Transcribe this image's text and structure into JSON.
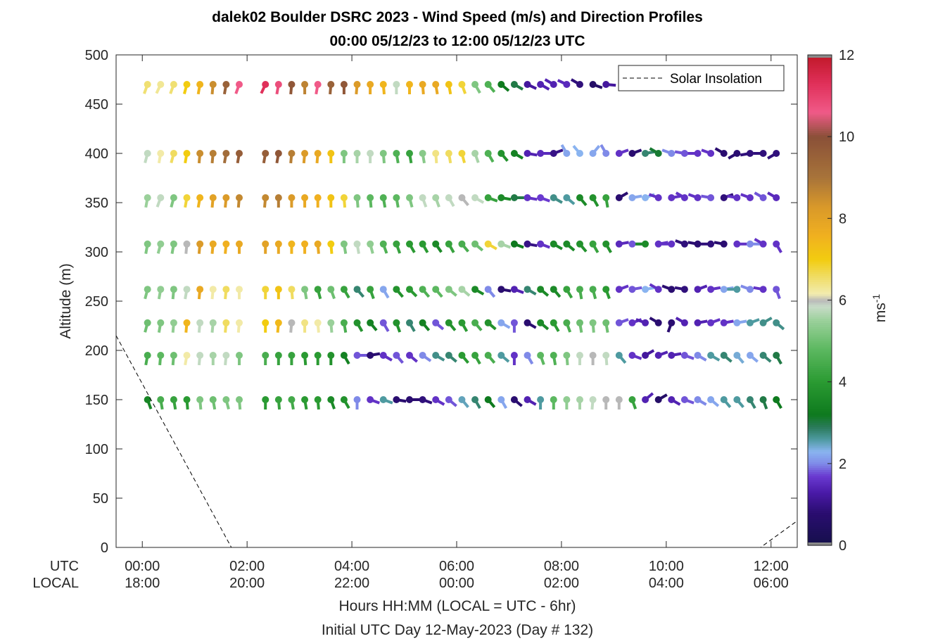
{
  "chart_data": {
    "type": "scatter",
    "title": "dalek02 Boulder DSRC 2023 - Wind Speed (m/s) and Direction Profiles",
    "subtitle": "00:00 05/12/23 to 12:00 05/12/23  UTC",
    "ylabel": "Altitude (m)",
    "xlabel": "Hours HH:MM  (LOCAL = UTC - 6hr)",
    "xlabel2": "Initial UTC Day 12-May-2023 (Day # 132)",
    "ylim": [
      0,
      500
    ],
    "xlim_hours": [
      -0.5,
      12.5
    ],
    "grid": false,
    "legend_position": "top-right",
    "y_ticks": [
      "0",
      "50",
      "100",
      "150",
      "200",
      "250",
      "300",
      "350",
      "400",
      "450",
      "500"
    ],
    "x_row_labels": [
      "UTC",
      "LOCAL"
    ],
    "x_ticks": [
      {
        "hour": 0,
        "utc": "00:00",
        "local": "18:00"
      },
      {
        "hour": 2,
        "utc": "02:00",
        "local": "20:00"
      },
      {
        "hour": 4,
        "utc": "04:00",
        "local": "22:00"
      },
      {
        "hour": 6,
        "utc": "06:00",
        "local": "00:00"
      },
      {
        "hour": 8,
        "utc": "08:00",
        "local": "02:00"
      },
      {
        "hour": 10,
        "utc": "10:00",
        "local": "04:00"
      },
      {
        "hour": 12,
        "utc": "12:00",
        "local": "06:00"
      }
    ],
    "legend": [
      "Solar Insolation"
    ],
    "colorbar": {
      "label": "ms",
      "label_exp": "-1",
      "range": [
        0,
        12
      ],
      "ticks": [
        "0",
        "2",
        "4",
        "6",
        "8",
        "10",
        "12"
      ]
    },
    "solar_insolation": [
      [
        -0.5,
        215
      ],
      [
        1.7,
        0
      ],
      [
        11.8,
        0
      ],
      [
        12.5,
        27
      ]
    ],
    "altitudes": [
      470,
      400,
      355,
      308,
      262,
      228,
      195,
      150
    ],
    "times_hours": [
      0.1,
      0.35,
      0.6,
      0.85,
      1.1,
      1.35,
      1.6,
      1.85,
      2.35,
      2.6,
      2.85,
      3.1,
      3.35,
      3.6,
      3.85,
      4.1,
      4.35,
      4.6,
      4.85,
      5.1,
      5.35,
      5.6,
      5.85,
      6.1,
      6.35,
      6.6,
      6.85,
      7.1,
      7.35,
      7.6,
      7.85,
      8.1,
      8.35,
      8.6,
      8.85,
      9.1,
      9.35,
      9.6,
      9.85,
      10.1,
      10.35,
      10.6,
      10.85,
      11.1,
      11.35,
      11.6,
      11.85,
      12.1
    ],
    "profiles": [
      {
        "altitude": 470,
        "speed": [
          6.5,
          6.3,
          6.5,
          7,
          7.5,
          8.5,
          9.5,
          10.6,
          11.3,
          10.8,
          9.8,
          8.7,
          10.6,
          9.5,
          9.8,
          8.2,
          7.8,
          7.5,
          5.8,
          7.5,
          7.8,
          7.8,
          7.2,
          6.8,
          5.2,
          4.6,
          3.2,
          3.0,
          1.2,
          1.4,
          1.4,
          1.5,
          0.9,
          0.6,
          1.2,
          null,
          null,
          null,
          null,
          null,
          null,
          null,
          null,
          null,
          null,
          null,
          null,
          null
        ],
        "direction": [
          200,
          205,
          200,
          195,
          190,
          185,
          190,
          200,
          205,
          190,
          185,
          180,
          190,
          185,
          180,
          185,
          180,
          175,
          180,
          180,
          175,
          170,
          170,
          160,
          150,
          140,
          130,
          120,
          115,
          120,
          300,
          295,
          300,
          110,
          95,
          250,
          null,
          null,
          null,
          null,
          null,
          null,
          null,
          null,
          null,
          null,
          null,
          null
        ]
      },
      {
        "altitude": 400,
        "speed": [
          5.8,
          6.2,
          6.6,
          7.0,
          8.5,
          8.8,
          9.2,
          9.6,
          9.6,
          9.8,
          8.8,
          8.2,
          7.8,
          7.2,
          5.2,
          5.6,
          5.8,
          5.2,
          4.6,
          4.2,
          5.3,
          6.4,
          6.6,
          6.8,
          5.6,
          4.6,
          3.8,
          3.4,
          1.4,
          1.5,
          1.0,
          2.2,
          2.3,
          2.2,
          2.0,
          1.6,
          0.8,
          2.8,
          3.1,
          2.0,
          1.8,
          1.6,
          1.6,
          0.8,
          0.8,
          0.9,
          0.9,
          0.9
        ],
        "direction": [
          195,
          190,
          195,
          190,
          185,
          185,
          190,
          190,
          190,
          190,
          185,
          185,
          185,
          180,
          180,
          180,
          180,
          175,
          170,
          170,
          170,
          175,
          170,
          165,
          160,
          150,
          140,
          120,
          100,
          90,
          70,
          330,
          320,
          40,
          330,
          70,
          70,
          80,
          300,
          290,
          280,
          270,
          290,
          300,
          240,
          260,
          270,
          240
        ]
      },
      {
        "altitude": 355,
        "speed": [
          5.5,
          5.8,
          5.2,
          6.8,
          7.5,
          8.0,
          8.2,
          8.6,
          8.6,
          8.8,
          8.2,
          7.8,
          7.6,
          7.2,
          6.8,
          5.2,
          4.8,
          4.6,
          4.8,
          5.2,
          5.8,
          5.6,
          5.8,
          6.0,
          5.8,
          4.2,
          3.6,
          3.0,
          1.6,
          1.7,
          2.7,
          2.6,
          3.6,
          3.8,
          4.2,
          0.8,
          2.2,
          2.3,
          1.6,
          1.6,
          1.6,
          1.6,
          1.8,
          0.9,
          1.6,
          1.6,
          1.8,
          1.5
        ],
        "direction": [
          190,
          200,
          195,
          190,
          190,
          185,
          185,
          185,
          185,
          180,
          180,
          180,
          180,
          180,
          175,
          175,
          175,
          170,
          170,
          165,
          160,
          160,
          150,
          140,
          120,
          110,
          100,
          90,
          100,
          110,
          120,
          130,
          140,
          150,
          170,
          60,
          80,
          70,
          290,
          80,
          300,
          290,
          280,
          70,
          280,
          290,
          300,
          300
        ]
      },
      {
        "altitude": 308,
        "speed": [
          5.2,
          5.4,
          5.2,
          6.0,
          8.2,
          7.8,
          7.6,
          7.8,
          8.0,
          7.8,
          7.5,
          7.6,
          7.8,
          7.0,
          5.2,
          5.8,
          5.4,
          4.6,
          4.2,
          4.0,
          4.0,
          3.6,
          4.2,
          4.5,
          5.0,
          6.8,
          5.6,
          3.2,
          1.0,
          1.6,
          3.6,
          3.6,
          3.8,
          4.2,
          3.8,
          1.5,
          1.8,
          3.6,
          1.6,
          1.6,
          0.9,
          0.8,
          0.9,
          0.8,
          1.6,
          2.0,
          1.6,
          1.6
        ],
        "direction": [
          190,
          195,
          190,
          185,
          185,
          185,
          185,
          180,
          180,
          180,
          180,
          180,
          175,
          175,
          170,
          170,
          165,
          160,
          160,
          150,
          150,
          145,
          150,
          140,
          130,
          120,
          110,
          110,
          100,
          110,
          120,
          130,
          140,
          150,
          150,
          80,
          90,
          270,
          80,
          270,
          290,
          280,
          270,
          280,
          90,
          90,
          300,
          150
        ]
      },
      {
        "altitude": 262,
        "speed": [
          5.2,
          5.4,
          5.2,
          5.8,
          7.8,
          6.2,
          6.6,
          6.2,
          6.8,
          7.2,
          6.6,
          5.2,
          4.2,
          5.0,
          4.2,
          2.8,
          4.2,
          2.2,
          3.8,
          4.0,
          4.6,
          4.8,
          5.2,
          5.6,
          3.6,
          2.0,
          0.8,
          1.4,
          2.8,
          3.6,
          3.6,
          4.2,
          4.5,
          4.5,
          4.0,
          1.6,
          1.8,
          2.3,
          1.6,
          0.8,
          0.9,
          1.4,
          1.6,
          2.2,
          2.6,
          2.0,
          1.6,
          1.8
        ],
        "direction": [
          195,
          190,
          185,
          190,
          185,
          185,
          185,
          180,
          180,
          180,
          175,
          170,
          165,
          160,
          150,
          140,
          160,
          150,
          140,
          135,
          140,
          140,
          130,
          130,
          120,
          140,
          100,
          110,
          120,
          130,
          140,
          150,
          170,
          165,
          160,
          70,
          80,
          80,
          300,
          290,
          280,
          70,
          80,
          80,
          270,
          290,
          280,
          160
        ]
      },
      {
        "altitude": 228,
        "speed": [
          5.0,
          5.2,
          5.4,
          7.5,
          5.8,
          5.6,
          6.6,
          6.2,
          7.0,
          7.4,
          6.0,
          6.4,
          6.2,
          5.5,
          4.5,
          3.8,
          3.4,
          1.8,
          3.8,
          2.8,
          3.4,
          1.8,
          3.8,
          4.0,
          4.5,
          3.8,
          2.2,
          1.8,
          0.8,
          3.6,
          4.0,
          4.5,
          5.0,
          5.2,
          5.0,
          1.8,
          1.6,
          1.4,
          0.8,
          0.8,
          1.4,
          1.4,
          1.6,
          1.6,
          2.2,
          2.6,
          2.7,
          2.7
        ],
        "direction": [
          195,
          190,
          185,
          185,
          185,
          185,
          185,
          185,
          180,
          185,
          185,
          180,
          175,
          175,
          170,
          150,
          140,
          150,
          160,
          150,
          140,
          130,
          140,
          150,
          140,
          130,
          120,
          180,
          120,
          130,
          150,
          160,
          170,
          175,
          170,
          70,
          70,
          290,
          300,
          200,
          300,
          80,
          70,
          80,
          80,
          70,
          60,
          130
        ]
      },
      {
        "altitude": 195,
        "speed": [
          4.5,
          4.8,
          5.0,
          6.2,
          5.8,
          5.6,
          5.8,
          5.2,
          4.5,
          4.2,
          4.2,
          4.0,
          4.0,
          3.8,
          3.4,
          1.8,
          0.8,
          1.6,
          1.8,
          1.6,
          2.0,
          2.7,
          2.8,
          4.0,
          4.2,
          4.5,
          2.6,
          1.6,
          2.0,
          4.8,
          4.6,
          5.2,
          5.8,
          6.0,
          5.8,
          2.6,
          1.6,
          1.2,
          1.4,
          1.4,
          1.8,
          2.0,
          2.6,
          2.8,
          2.4,
          2.2,
          2.8,
          3.0
        ],
        "direction": [
          190,
          185,
          185,
          190,
          185,
          180,
          185,
          180,
          180,
          180,
          180,
          175,
          180,
          180,
          150,
          90,
          80,
          120,
          140,
          130,
          125,
          120,
          130,
          140,
          150,
          140,
          130,
          180,
          150,
          160,
          170,
          175,
          180,
          180,
          175,
          140,
          110,
          60,
          70,
          80,
          110,
          120,
          120,
          130,
          140,
          130,
          130,
          150
        ]
      },
      {
        "altitude": 150,
        "speed": [
          3.5,
          4.5,
          4.2,
          4.0,
          5.2,
          5.0,
          5.2,
          5.2,
          4.0,
          4.2,
          4.4,
          4.0,
          4.0,
          3.6,
          3.8,
          2.0,
          1.6,
          2.6,
          0.8,
          0.8,
          0.9,
          1.6,
          1.8,
          2.5,
          2.8,
          3.2,
          2.2,
          0.8,
          1.4,
          2.6,
          4.8,
          5.4,
          5.6,
          5.8,
          6.0,
          6.0,
          4.2,
          1.4,
          0.6,
          1.4,
          1.8,
          2.0,
          2.2,
          2.6,
          2.6,
          2.8,
          3.0,
          3.2
        ],
        "direction": [
          160,
          170,
          170,
          175,
          175,
          170,
          165,
          175,
          180,
          175,
          170,
          170,
          175,
          160,
          150,
          180,
          110,
          110,
          100,
          90,
          110,
          120,
          130,
          140,
          150,
          140,
          150,
          130,
          120,
          180,
          180,
          180,
          180,
          185,
          180,
          180,
          160,
          50,
          60,
          120,
          110,
          120,
          130,
          140,
          140,
          150,
          160,
          150
        ]
      }
    ]
  }
}
